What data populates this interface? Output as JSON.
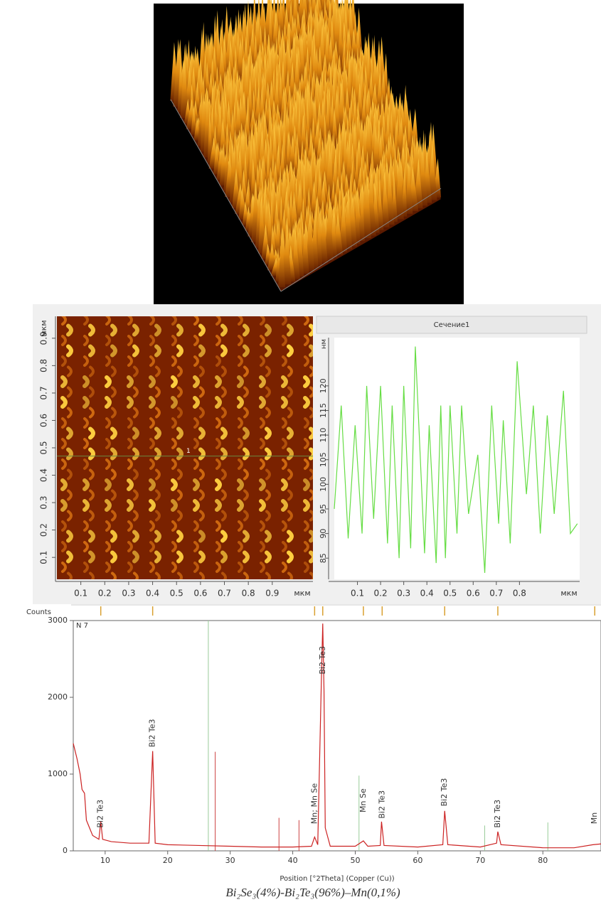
{
  "afm_map": {
    "y_axis_label": "мкм",
    "x_axis_label": "мкм",
    "xlim": [
      0,
      1.07
    ],
    "ylim": [
      0.02,
      0.98
    ],
    "xticks": [
      0.1,
      0.2,
      0.3,
      0.4,
      0.5,
      0.6,
      0.7,
      0.8,
      0.9
    ],
    "yticks": [
      0.1,
      0.2,
      0.3,
      0.4,
      0.5,
      0.6,
      0.7,
      0.8,
      0.9
    ],
    "section_label": "1"
  },
  "chart_data": [
    {
      "type": "line",
      "title": "Сечение1",
      "y_label": "нм",
      "x_label": "мкм",
      "color": "#66dd44",
      "xlim": [
        0,
        1.06
      ],
      "ylim": [
        80.7,
        129.8
      ],
      "xticks": [
        0.1,
        0.2,
        0.3,
        0.4,
        0.5,
        0.6,
        0.7,
        0.8
      ],
      "yticks": [
        85,
        90,
        95,
        100,
        105,
        110,
        115,
        120
      ],
      "x": [
        0,
        0.03,
        0.06,
        0.09,
        0.12,
        0.14,
        0.17,
        0.2,
        0.23,
        0.25,
        0.28,
        0.3,
        0.33,
        0.35,
        0.39,
        0.41,
        0.44,
        0.46,
        0.48,
        0.5,
        0.53,
        0.55,
        0.58,
        0.62,
        0.65,
        0.68,
        0.71,
        0.73,
        0.76,
        0.79,
        0.83,
        0.86,
        0.89,
        0.92,
        0.95,
        0.99,
        1.02,
        1.05
      ],
      "values": [
        95,
        116,
        89,
        112,
        90,
        120,
        93,
        120,
        88,
        116,
        85,
        120,
        87,
        128,
        86,
        112,
        84,
        116,
        85,
        116,
        90,
        116,
        94,
        106,
        82,
        116,
        92,
        113,
        88,
        125,
        98,
        116,
        90,
        114,
        94,
        119,
        90,
        92
      ]
    },
    {
      "type": "xrd",
      "y_label": "Counts",
      "inset_label": "N 7",
      "x_label": "Position [°2Theta] (Copper (Cu))",
      "color": "#cc2222",
      "xlim": [
        4.9,
        89.3
      ],
      "ylim": [
        0,
        3000
      ],
      "xticks": [
        10,
        20,
        30,
        40,
        50,
        60,
        70,
        80
      ],
      "yticks": [
        0,
        1000,
        2000,
        3000
      ],
      "x": [
        4.9,
        5.5,
        6,
        6.3,
        6.7,
        7,
        8,
        9,
        9.3,
        9.6,
        11,
        14,
        17,
        17.6,
        18,
        20,
        25,
        30,
        35,
        40,
        43,
        43.5,
        44,
        44.6,
        44.8,
        45,
        45.2,
        46,
        50,
        51.3,
        52,
        54,
        54.2,
        54.6,
        60,
        64,
        64.3,
        64.8,
        70,
        72.6,
        72.8,
        73.3,
        80,
        85,
        88,
        89.3
      ],
      "values": [
        1400,
        1200,
        1000,
        800,
        750,
        400,
        200,
        150,
        380,
        150,
        120,
        100,
        100,
        1300,
        100,
        80,
        70,
        60,
        50,
        50,
        60,
        180,
        80,
        2300,
        2960,
        2100,
        300,
        60,
        60,
        130,
        60,
        70,
        380,
        70,
        50,
        80,
        520,
        80,
        50,
        100,
        250,
        80,
        40,
        40,
        80,
        90
      ],
      "sticks": [
        {
          "x": 26.5,
          "value": 3000,
          "color": "#99cc99"
        },
        {
          "x": 27.6,
          "value": 1290,
          "color": "#cc4444"
        },
        {
          "x": 37.8,
          "value": 430,
          "color": "#cc4444"
        },
        {
          "x": 41,
          "value": 400,
          "color": "#cc4444"
        },
        {
          "x": 50.6,
          "value": 980,
          "color": "#99cc99"
        },
        {
          "x": 70.7,
          "value": 330,
          "color": "#99cc99"
        },
        {
          "x": 80.8,
          "value": 370,
          "color": "#99cc99"
        }
      ],
      "annotations": [
        {
          "text": "Bi2 Te3",
          "x": 9.3,
          "y": 300
        },
        {
          "text": "Bi2 Te3",
          "x": 17.6,
          "y": 1350
        },
        {
          "text": "Mn; Mn Se",
          "x": 43.5,
          "y": 350
        },
        {
          "text": "Bi2 Te3",
          "x": 44.8,
          "y": 2300
        },
        {
          "text": "Mn Se",
          "x": 51.3,
          "y": 500
        },
        {
          "text": "Bi2 Te3",
          "x": 54.3,
          "y": 420
        },
        {
          "text": "Bi2 Te3",
          "x": 64.3,
          "y": 580
        },
        {
          "text": "Bi2 Te3",
          "x": 72.8,
          "y": 300
        },
        {
          "text": "Mn",
          "x": 88.3,
          "y": 350
        }
      ]
    }
  ],
  "caption": "Bi₂Se₃(4%)-Bi₂Te₃(96%)–Mn(0,1%)"
}
